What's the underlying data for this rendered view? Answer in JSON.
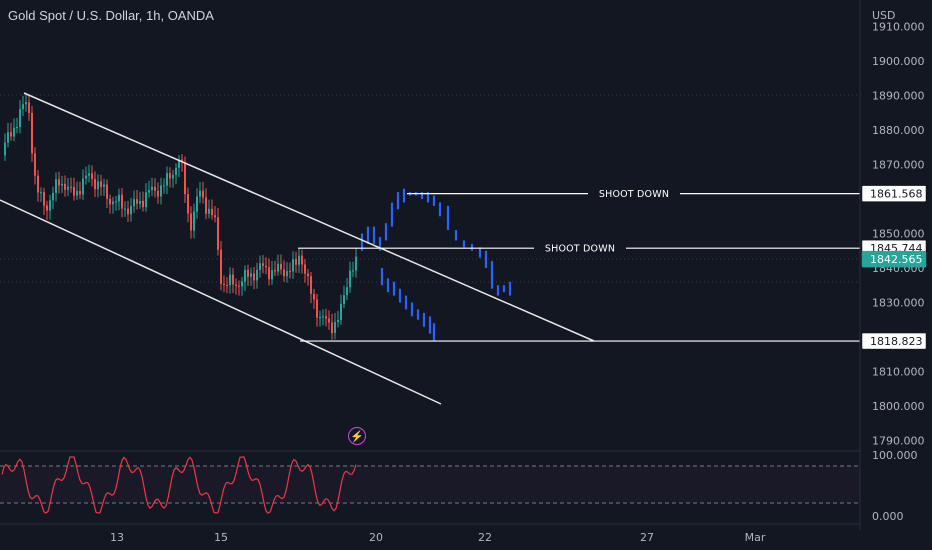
{
  "header": {
    "title": "Gold Spot / U.S. Dollar, 1h, OANDA"
  },
  "price_axis": {
    "currency": "USD",
    "ticks": [
      "1910.000",
      "1900.000",
      "1890.000",
      "1880.000",
      "1870.000",
      "1850.000",
      "1840.000",
      "1830.000",
      "1810.000",
      "1800.000",
      "1790.000"
    ],
    "tick_values": [
      1910,
      1900,
      1890,
      1880,
      1870,
      1850,
      1840,
      1830,
      1810,
      1800,
      1790
    ]
  },
  "price_tags": [
    {
      "label": "1861.568",
      "value": 1861.568,
      "style": "outline"
    },
    {
      "label": "1845.744",
      "value": 1845.744,
      "style": "outline"
    },
    {
      "label": "1842.565",
      "value": 1842.565,
      "style": "current"
    },
    {
      "label": "1818.823",
      "value": 1818.823,
      "style": "outline"
    }
  ],
  "annotations": [
    {
      "text": "SHOOT DOWN",
      "value": 1861.568
    },
    {
      "text": "SHOOT DOWN",
      "value": 1845.744
    }
  ],
  "time_axis": {
    "labels": [
      "13",
      "15",
      "20",
      "22",
      "27",
      "Mar"
    ]
  },
  "oscillator": {
    "ticks": [
      "100.000",
      "0.000"
    ],
    "upper_level": 80,
    "lower_level": 20
  },
  "colors": {
    "background": "#131722",
    "up": "#26a69a",
    "down": "#ef5350",
    "projection": "#2962ff",
    "current_tag": "#26a69a",
    "oscillator_line": "#f23645",
    "bolt": "#c04fe0"
  },
  "icons": {
    "alert": "lightning-bolt-icon"
  }
}
